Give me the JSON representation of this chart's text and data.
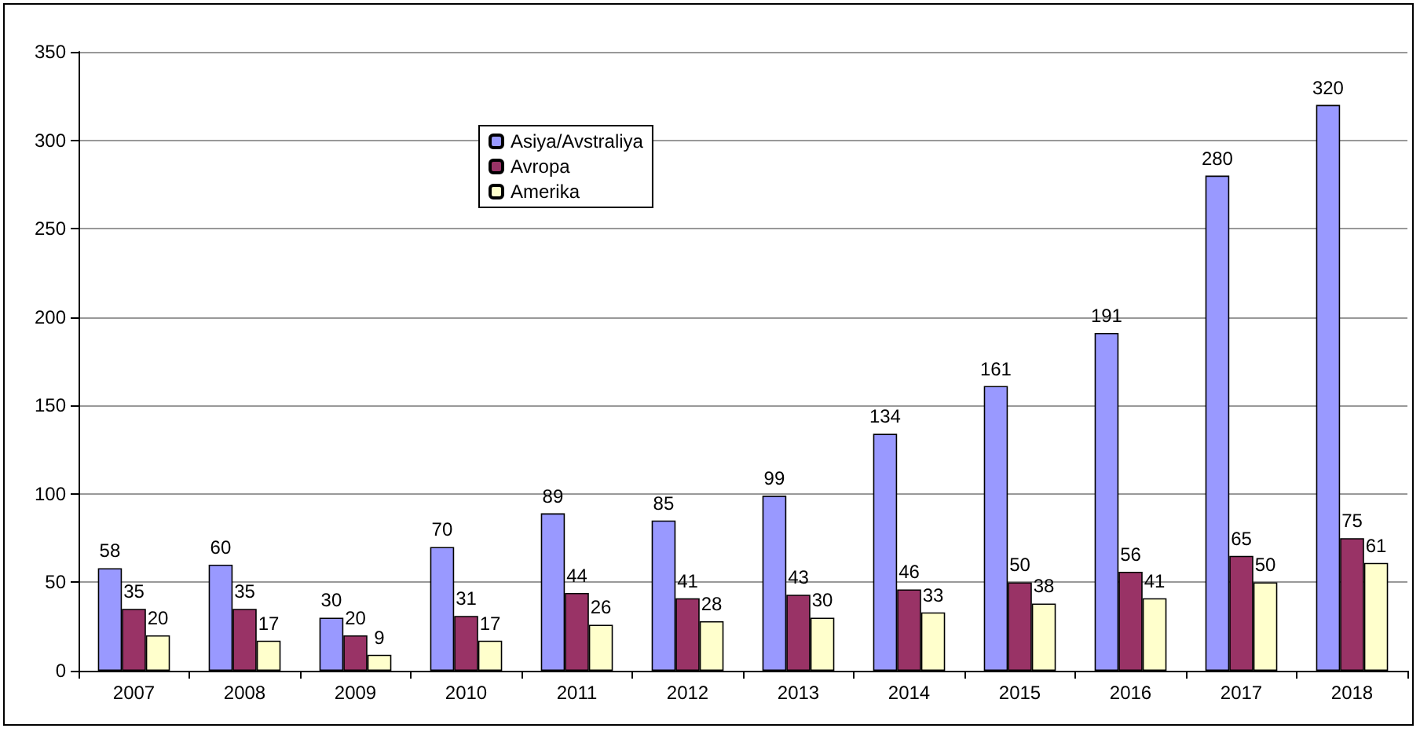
{
  "chart_data": {
    "type": "bar",
    "categories": [
      "2007",
      "2008",
      "2009",
      "2010",
      "2011",
      "2012",
      "2013",
      "2014",
      "2015",
      "2016",
      "2017",
      "2018"
    ],
    "series": [
      {
        "name": "Asiya/Avstraliya",
        "color": "#9999ff",
        "values": [
          58,
          60,
          30,
          70,
          89,
          85,
          99,
          134,
          161,
          191,
          280,
          320
        ]
      },
      {
        "name": "Avropa",
        "color": "#993366",
        "values": [
          35,
          35,
          20,
          31,
          44,
          41,
          43,
          46,
          50,
          56,
          65,
          75
        ]
      },
      {
        "name": "Amerika",
        "color": "#ffffcc",
        "values": [
          20,
          17,
          9,
          17,
          26,
          28,
          30,
          33,
          38,
          41,
          50,
          61
        ]
      }
    ],
    "ylim": [
      0,
      350
    ],
    "yticks": [
      0,
      50,
      100,
      150,
      200,
      250,
      300,
      350
    ],
    "grid": "y",
    "legend": "top left",
    "data_labels": true
  }
}
